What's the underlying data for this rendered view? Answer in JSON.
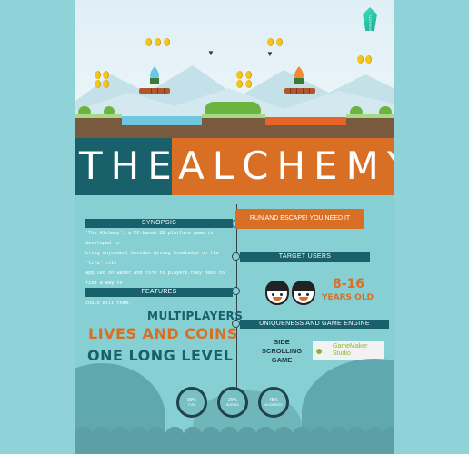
{
  "scene": {
    "badge_text": "ALCHEMY"
  },
  "title": {
    "part1": "THE",
    "part2": "ALCHEMY"
  },
  "synopsis": {
    "header": "SYNOPSIS",
    "lines": [
      "'The Alchemy', a PC-based 2D platform game is developed to",
      "bring enjoyment besides giving knowledge on the 'life' role",
      "applied on water and fire to players.they need to find a way to",
      "escape from a place filled with challenges that could kill them."
    ]
  },
  "tagline": "RUN AND ESCAPE! YOU NEED IT",
  "target_users": {
    "header": "TARGET USERS",
    "age": "8-16",
    "age_label": "YEARS OLD"
  },
  "features": {
    "header": "FEATURES",
    "items": [
      "MULTIPLAYERS",
      "LIVES AND COINS",
      "ONE LONG LEVEL"
    ]
  },
  "uniqueness": {
    "header": "UNIQUENESS AND GAME ENGINE",
    "lines": [
      "SIDE",
      "SCROLLING",
      "GAME"
    ],
    "engine_line1": "GameMaker",
    "engine_line2": "Studio"
  },
  "stats": [
    {
      "value": "99%",
      "label": "FUN"
    },
    {
      "value": "20%",
      "label": "BORING"
    },
    {
      "value": "45%",
      "label": "MODERATE"
    }
  ],
  "colors": {
    "teal_dark": "#18616b",
    "orange": "#d86f24",
    "background": "#86cfd3"
  }
}
